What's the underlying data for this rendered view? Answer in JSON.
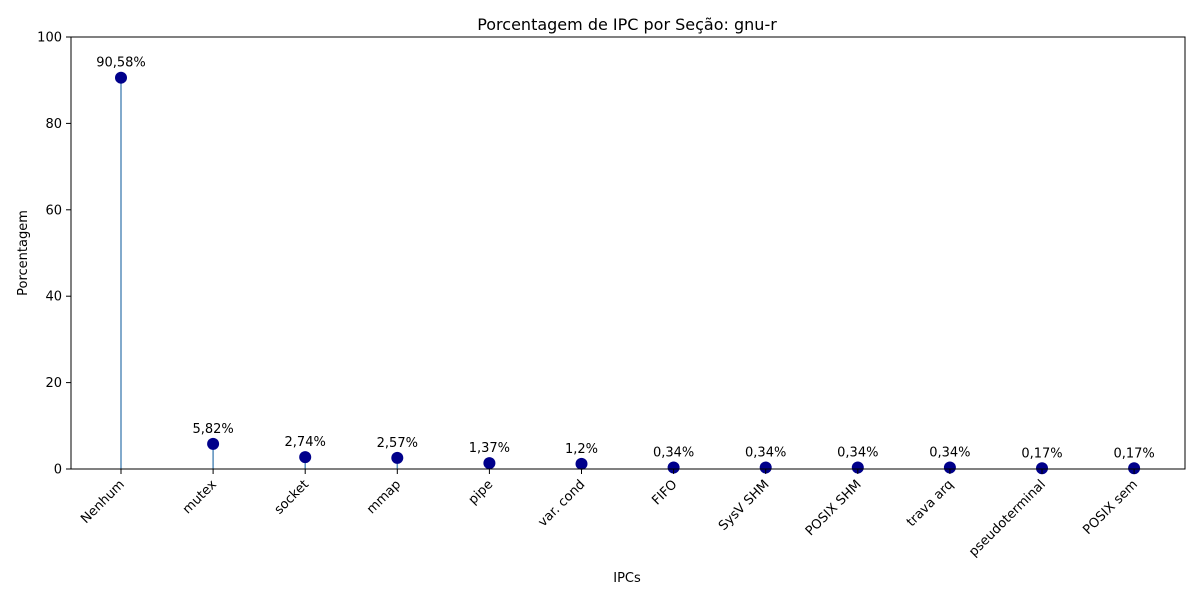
{
  "chart_data": {
    "type": "lollipop",
    "title": "Porcentagem de IPC por Seção: gnu-r",
    "xlabel": "IPCs",
    "ylabel": "Porcentagem",
    "ylim": [
      0,
      100
    ],
    "yticks": [
      0,
      20,
      40,
      60,
      80,
      100
    ],
    "categories": [
      "Nenhum",
      "mutex",
      "socket",
      "mmap",
      "pipe",
      "var. cond",
      "FIFO",
      "SysV SHM",
      "POSIX SHM",
      "trava arq",
      "pseudoterminal",
      "POSIX sem"
    ],
    "values": [
      90.58,
      5.82,
      2.74,
      2.57,
      1.37,
      1.2,
      0.34,
      0.34,
      0.34,
      0.34,
      0.17,
      0.17
    ],
    "data_labels": [
      "90,58%",
      "5,82%",
      "2,74%",
      "2,57%",
      "1,37%",
      "1,2%",
      "0,34%",
      "0,34%",
      "0,34%",
      "0,34%",
      "0,17%",
      "0,17%"
    ],
    "grid": false,
    "colors": {
      "marker": "#00008b",
      "stem": "#4682b4"
    }
  }
}
